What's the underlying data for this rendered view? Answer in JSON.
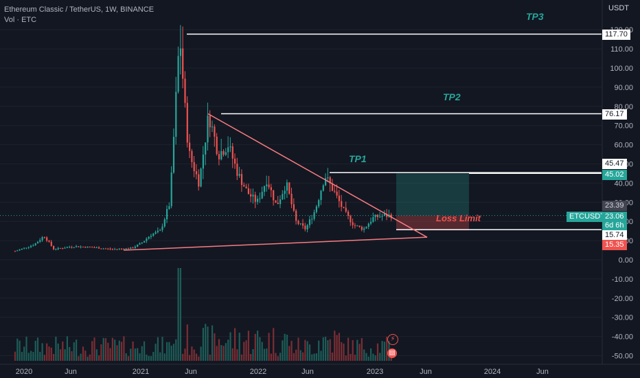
{
  "header": {
    "title": "Ethereum Classic / TetherUS, 1W, BINANCE",
    "volume_label": "Vol · ETC"
  },
  "annotations": {
    "tp1": "TP1",
    "tp2": "TP2",
    "tp3": "TP3",
    "loss_limit": "Loss Limit"
  },
  "price_axis": {
    "currency": "USDT",
    "ticks": [
      "120.00",
      "110.00",
      "100.00",
      "90.00",
      "80.00",
      "70.00",
      "60.00",
      "50.00",
      "40.00",
      "30.00",
      "20.00",
      "10.00",
      "0.00",
      "-10.00",
      "-20.00",
      "-30.00",
      "-40.00",
      "-50.00"
    ]
  },
  "time_axis": {
    "ticks": [
      "2020",
      "Jun",
      "2021",
      "Jun",
      "2022",
      "Jun",
      "2023",
      "Jun",
      "2024",
      "Jun"
    ]
  },
  "price_tags": {
    "tp3": "117.70",
    "tp2": "76.17",
    "tp1_upper": "45.47",
    "target": "45.02",
    "high_marker": "23.39",
    "symbol": "ETCUSDT",
    "last_price": "23.06",
    "countdown": "6d 6h",
    "stop_line": "15.74",
    "stop": "15.35"
  },
  "colors": {
    "background": "#131722",
    "up": "#26a69a",
    "down": "#ef5350",
    "trendline": "#f77c80",
    "level": "#ffffff",
    "grid": "#1e222d"
  },
  "chart_data": {
    "type": "candlestick",
    "symbol": "ETCUSDT",
    "interval": "1W",
    "exchange": "BINANCE",
    "ylim": [
      -50,
      125
    ],
    "levels": [
      117.7,
      76.17,
      45.47,
      45.02,
      15.74,
      15.35
    ],
    "last_price": 23.06,
    "position": {
      "entry": 23.06,
      "target": 45.02,
      "stop": 15.35
    },
    "triangle": {
      "upper": [
        [
          "2021-08",
          76.17
        ],
        [
          "2023-04",
          17.5
        ]
      ],
      "lower": [
        [
          "2020-11",
          5.0
        ],
        [
          "2023-04",
          17.5
        ]
      ]
    },
    "price_path": [
      [
        "2019-12",
        4.5
      ],
      [
        "2020-02",
        8.0
      ],
      [
        "2020-03",
        12.5
      ],
      [
        "2020-04",
        5.5
      ],
      [
        "2020-06",
        7.0
      ],
      [
        "2020-08",
        6.5
      ],
      [
        "2020-10",
        5.5
      ],
      [
        "2020-12",
        6.0
      ],
      [
        "2021-01",
        8.5
      ],
      [
        "2021-02",
        13.0
      ],
      [
        "2021-03",
        15.0
      ],
      [
        "2021-04",
        30.0
      ],
      [
        "2021-05",
        118.0
      ],
      [
        "2021-05-20",
        70.0
      ],
      [
        "2021-06",
        55.0
      ],
      [
        "2021-07",
        40.0
      ],
      [
        "2021-08",
        76.0
      ],
      [
        "2021-09",
        55.0
      ],
      [
        "2021-10",
        60.0
      ],
      [
        "2021-11",
        45.0
      ],
      [
        "2021-12",
        35.0
      ],
      [
        "2022-01",
        30.0
      ],
      [
        "2022-02",
        42.0
      ],
      [
        "2022-03",
        28.0
      ],
      [
        "2022-04",
        40.0
      ],
      [
        "2022-05",
        20.0
      ],
      [
        "2022-06",
        16.0
      ],
      [
        "2022-07",
        26.0
      ],
      [
        "2022-08",
        44.0
      ],
      [
        "2022-09",
        35.0
      ],
      [
        "2022-10",
        25.0
      ],
      [
        "2022-11",
        18.0
      ],
      [
        "2022-12",
        16.0
      ],
      [
        "2023-01",
        22.0
      ],
      [
        "2023-02",
        23.0
      ],
      [
        "2023-03",
        23.06
      ]
    ],
    "volume_spikes": [
      "2021-05"
    ]
  }
}
